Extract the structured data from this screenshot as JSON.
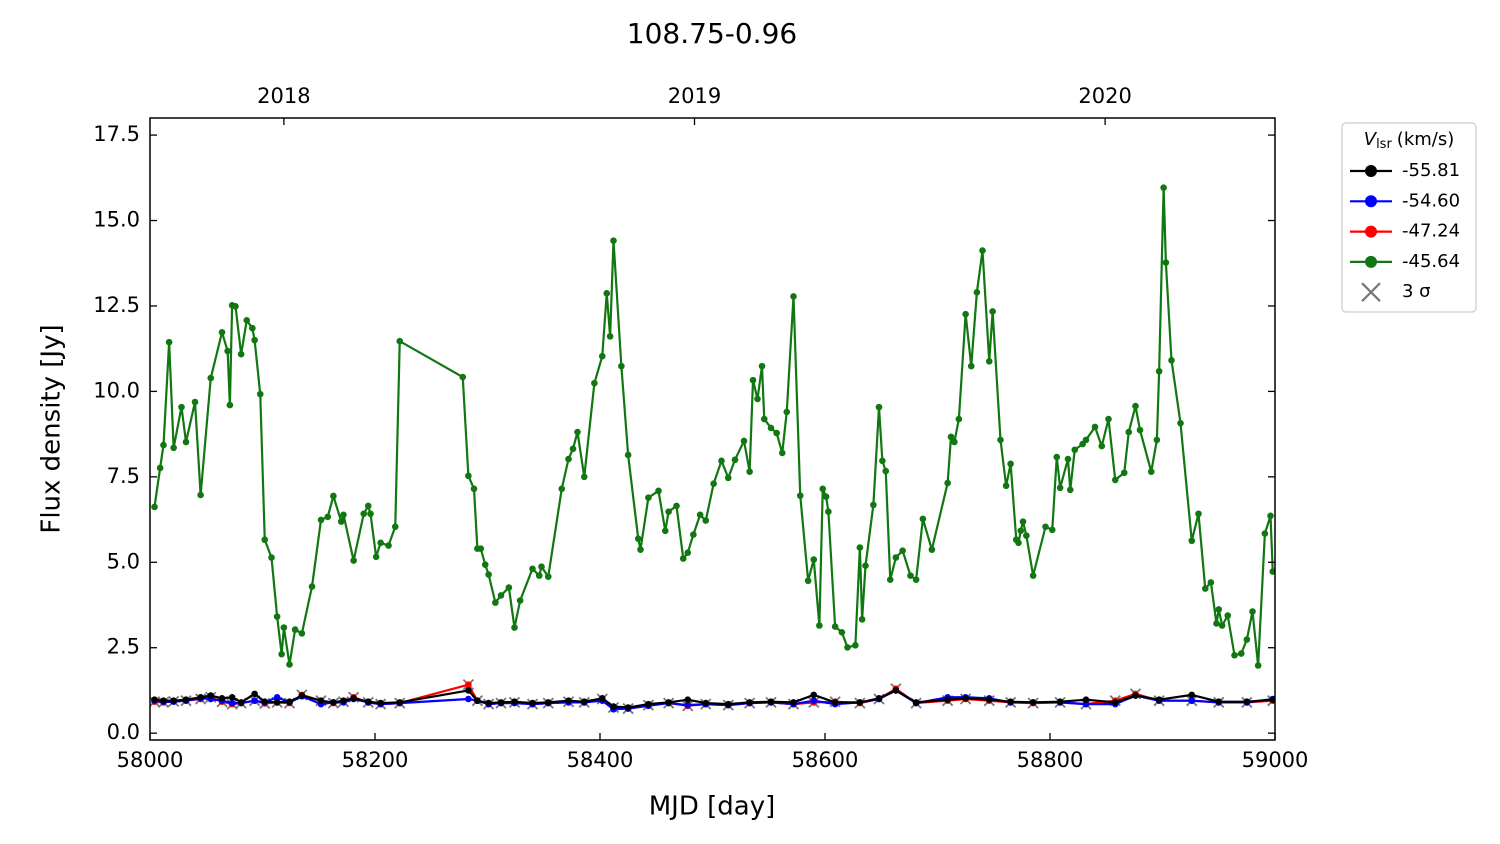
{
  "chart_data": {
    "type": "line",
    "title": "108.75-0.96",
    "xlabel": "MJD [day]",
    "ylabel": "Flux density [Jy]",
    "xlim": [
      58000,
      59000
    ],
    "ylim": [
      -0.2,
      18.0
    ],
    "xticks": [
      58000,
      58200,
      58400,
      58600,
      58800,
      59000
    ],
    "yticks": [
      {
        "value": 0,
        "label": "0.0"
      },
      2.5,
      {
        "value": 5,
        "label": "5.0"
      },
      7.5,
      {
        "value": 10,
        "label": "10.0"
      },
      12.5,
      {
        "value": 15,
        "label": "15.0"
      },
      17.5
    ],
    "x2ticks": [
      {
        "value": 58119,
        "label": "2018"
      },
      {
        "value": 58484,
        "label": "2019"
      },
      {
        "value": 58849,
        "label": "2020"
      }
    ],
    "grid": false,
    "legend": {
      "position": "outside-right-top",
      "title": {
        "symbol": "V",
        "subscript": "lsr",
        "unit": "(km/s)"
      },
      "sigma_label": "3 σ",
      "sigma_color": "#777777"
    },
    "series": [
      {
        "name": "-55.81",
        "color": "#000000",
        "x": [
          58004,
          58012,
          58021,
          58032,
          58045,
          58054,
          58064,
          58073,
          58081,
          58093,
          58102,
          58113,
          58124,
          58135,
          58152,
          58163,
          58172,
          58181,
          58194,
          58205,
          58222,
          58283,
          58291,
          58301,
          58312,
          58324,
          58340,
          58354,
          58372,
          58386,
          58402,
          58412,
          58425,
          58443,
          58461,
          58478,
          58494,
          58514,
          58533,
          58552,
          58572,
          58590,
          58609,
          58631,
          58648,
          58663,
          58681,
          58709,
          58725,
          58746,
          58765,
          58785,
          58809,
          58832,
          58858,
          58876,
          58897,
          58926,
          58950,
          58975,
          58998
        ],
        "values": [
          0.98,
          0.95,
          0.95,
          0.98,
          1.05,
          1.1,
          1.02,
          1.05,
          0.9,
          1.15,
          0.92,
          0.9,
          0.92,
          1.1,
          0.95,
          0.9,
          0.95,
          1.02,
          0.92,
          0.88,
          0.9,
          1.25,
          0.95,
          0.88,
          0.9,
          0.92,
          0.88,
          0.9,
          0.95,
          0.92,
          1.02,
          0.78,
          0.75,
          0.85,
          0.9,
          0.98,
          0.88,
          0.85,
          0.9,
          0.92,
          0.9,
          1.12,
          0.9,
          0.9,
          1.02,
          1.25,
          0.9,
          0.98,
          1.02,
          0.98,
          0.92,
          0.9,
          0.92,
          0.98,
          0.9,
          1.1,
          0.98,
          1.12,
          0.92,
          0.92,
          0.98
        ]
      },
      {
        "name": "-54.60",
        "color": "#0000ff",
        "x": [
          58004,
          58012,
          58021,
          58032,
          58045,
          58054,
          58064,
          58073,
          58081,
          58093,
          58102,
          58113,
          58124,
          58135,
          58152,
          58163,
          58172,
          58181,
          58194,
          58205,
          58222,
          58283,
          58291,
          58301,
          58312,
          58324,
          58340,
          58354,
          58372,
          58386,
          58402,
          58412,
          58425,
          58443,
          58461,
          58478,
          58494,
          58514,
          58533,
          58552,
          58572,
          58590,
          58609,
          58631,
          58648,
          58663,
          58681,
          58709,
          58725,
          58746,
          58765,
          58785,
          58809,
          58832,
          58858,
          58876,
          58897,
          58926,
          58950,
          58975,
          58998
        ],
        "values": [
          0.95,
          0.92,
          0.92,
          0.95,
          1.02,
          1.0,
          0.95,
          0.88,
          0.88,
          0.95,
          0.9,
          1.05,
          0.9,
          1.08,
          0.85,
          0.9,
          0.9,
          1.0,
          0.9,
          0.85,
          0.88,
          1.0,
          0.95,
          0.85,
          0.88,
          0.88,
          0.85,
          0.88,
          0.9,
          0.9,
          0.95,
          0.7,
          0.72,
          0.8,
          0.88,
          0.82,
          0.85,
          0.82,
          0.88,
          0.9,
          0.85,
          0.95,
          0.85,
          0.9,
          1.0,
          1.25,
          0.88,
          1.05,
          1.05,
          1.02,
          0.9,
          0.9,
          0.9,
          0.85,
          0.85,
          1.1,
          0.95,
          0.95,
          0.9,
          0.9,
          1.0
        ]
      },
      {
        "name": "-47.24",
        "color": "#ff0000",
        "x": [
          58004,
          58012,
          58021,
          58032,
          58045,
          58054,
          58064,
          58073,
          58081,
          58093,
          58102,
          58113,
          58124,
          58135,
          58152,
          58163,
          58172,
          58181,
          58194,
          58205,
          58222,
          58283,
          58291,
          58301,
          58312,
          58324,
          58340,
          58354,
          58372,
          58386,
          58402,
          58412,
          58425,
          58443,
          58461,
          58478,
          58494,
          58514,
          58533,
          58552,
          58572,
          58590,
          58609,
          58631,
          58648,
          58663,
          58681,
          58709,
          58725,
          58746,
          58765,
          58785,
          58809,
          58832,
          58858,
          58876,
          58897,
          58926,
          58950,
          58975,
          58998
        ],
        "values": [
          0.92,
          0.9,
          0.93,
          0.95,
          1.0,
          1.05,
          0.92,
          0.85,
          0.88,
          0.95,
          0.87,
          0.9,
          0.88,
          1.12,
          0.95,
          0.88,
          0.92,
          1.05,
          0.9,
          0.85,
          0.88,
          1.42,
          0.95,
          0.85,
          0.88,
          0.9,
          0.85,
          0.88,
          0.92,
          0.9,
          1.0,
          0.75,
          0.72,
          0.82,
          0.88,
          0.8,
          0.85,
          0.82,
          0.88,
          0.9,
          0.85,
          0.9,
          0.92,
          0.88,
          1.0,
          1.3,
          0.88,
          0.95,
          1.0,
          0.95,
          0.9,
          0.88,
          0.9,
          0.85,
          0.95,
          1.15,
          0.95,
          0.95,
          0.9,
          0.9,
          0.95
        ]
      },
      {
        "name": "-45.64",
        "color": "#117711",
        "x": [
          58004,
          58009,
          58012,
          58017,
          58021,
          58028,
          58032,
          58040,
          58045,
          58054,
          58064,
          58069,
          58071,
          58073,
          58076,
          58081,
          58086,
          58091,
          58093,
          58098,
          58102,
          58108,
          58113,
          58117,
          58119,
          58124,
          58129,
          58135,
          58144,
          58152,
          58158,
          58163,
          58170,
          58172,
          58181,
          58190,
          58194,
          58196,
          58201,
          58205,
          58212,
          58218,
          58222,
          58278,
          58283,
          58288,
          58291,
          58294,
          58298,
          58301,
          58307,
          58312,
          58319,
          58324,
          58329,
          58340,
          58346,
          58348,
          58354,
          58366,
          58372,
          58376,
          58380,
          58386,
          58395,
          58402,
          58406,
          58409,
          58412,
          58419,
          58425,
          58434,
          58436,
          58443,
          58452,
          58458,
          58461,
          58468,
          58474,
          58478,
          58483,
          58489,
          58494,
          58501,
          58508,
          58514,
          58520,
          58528,
          58533,
          58536,
          58540,
          58544,
          58546,
          58552,
          58557,
          58562,
          58566,
          58572,
          58578,
          58585,
          58590,
          58595,
          58598,
          58601,
          58603,
          58609,
          58615,
          58620,
          58627,
          58631,
          58633,
          58636,
          58643,
          58648,
          58651,
          58654,
          58658,
          58663,
          58669,
          58676,
          58681,
          58687,
          58695,
          58709,
          58712,
          58715,
          58719,
          58725,
          58730,
          58735,
          58740,
          58746,
          58749,
          58756,
          58761,
          58765,
          58770,
          58772,
          58774,
          58776,
          58779,
          58785,
          58796,
          58802,
          58806,
          58809,
          58816,
          58818,
          58822,
          58829,
          58832,
          58840,
          58846,
          58852,
          58858,
          58866,
          58870,
          58876,
          58880,
          58890,
          58895,
          58897,
          58901,
          58903,
          58908,
          58916,
          58926,
          58932,
          58938,
          58943,
          58948,
          58950,
          58953,
          58958,
          58964,
          58970,
          58975,
          58980,
          58985,
          58991,
          58996,
          58998
        ],
        "values": [
          6.62,
          7.76,
          8.43,
          11.44,
          8.35,
          9.54,
          8.52,
          9.69,
          6.97,
          10.39,
          11.73,
          11.18,
          9.6,
          12.52,
          12.49,
          11.09,
          12.08,
          11.85,
          11.5,
          9.92,
          5.66,
          5.14,
          3.41,
          2.31,
          3.09,
          2.01,
          3.03,
          2.92,
          4.29,
          6.24,
          6.33,
          6.94,
          6.19,
          6.39,
          5.05,
          6.42,
          6.65,
          6.42,
          5.16,
          5.57,
          5.49,
          6.04,
          11.47,
          10.42,
          7.53,
          7.15,
          5.4,
          5.4,
          4.93,
          4.64,
          3.82,
          4.03,
          4.26,
          3.09,
          3.88,
          4.81,
          4.61,
          4.87,
          4.58,
          7.15,
          8.02,
          8.32,
          8.81,
          7.5,
          10.24,
          11.03,
          12.87,
          11.61,
          14.41,
          10.74,
          8.14,
          5.69,
          5.37,
          6.89,
          7.09,
          5.92,
          6.48,
          6.65,
          5.11,
          5.28,
          5.81,
          6.39,
          6.22,
          7.3,
          7.97,
          7.47,
          8.0,
          8.55,
          7.65,
          10.33,
          9.78,
          10.74,
          9.19,
          8.93,
          8.78,
          8.2,
          9.4,
          12.78,
          6.95,
          4.46,
          5.08,
          3.15,
          7.15,
          6.92,
          6.48,
          3.12,
          2.95,
          2.51,
          2.57,
          5.43,
          3.33,
          4.9,
          6.68,
          9.54,
          7.97,
          7.67,
          4.49,
          5.14,
          5.34,
          4.61,
          4.49,
          6.27,
          5.37,
          7.32,
          8.67,
          8.52,
          9.19,
          12.26,
          10.74,
          12.9,
          14.12,
          10.88,
          12.34,
          8.58,
          7.24,
          7.88,
          5.66,
          5.57,
          5.92,
          6.19,
          5.78,
          4.61,
          6.04,
          5.95,
          8.08,
          7.18,
          8.02,
          7.12,
          8.29,
          8.46,
          8.58,
          8.96,
          8.4,
          9.19,
          7.41,
          7.62,
          8.81,
          9.57,
          8.87,
          7.65,
          8.58,
          10.59,
          15.96,
          13.77,
          10.91,
          9.07,
          5.63,
          6.42,
          4.23,
          4.41,
          3.21,
          3.62,
          3.15,
          3.44,
          2.28,
          2.33,
          2.74,
          3.56,
          1.98,
          5.84,
          6.36,
          4.73
        ]
      }
    ]
  }
}
